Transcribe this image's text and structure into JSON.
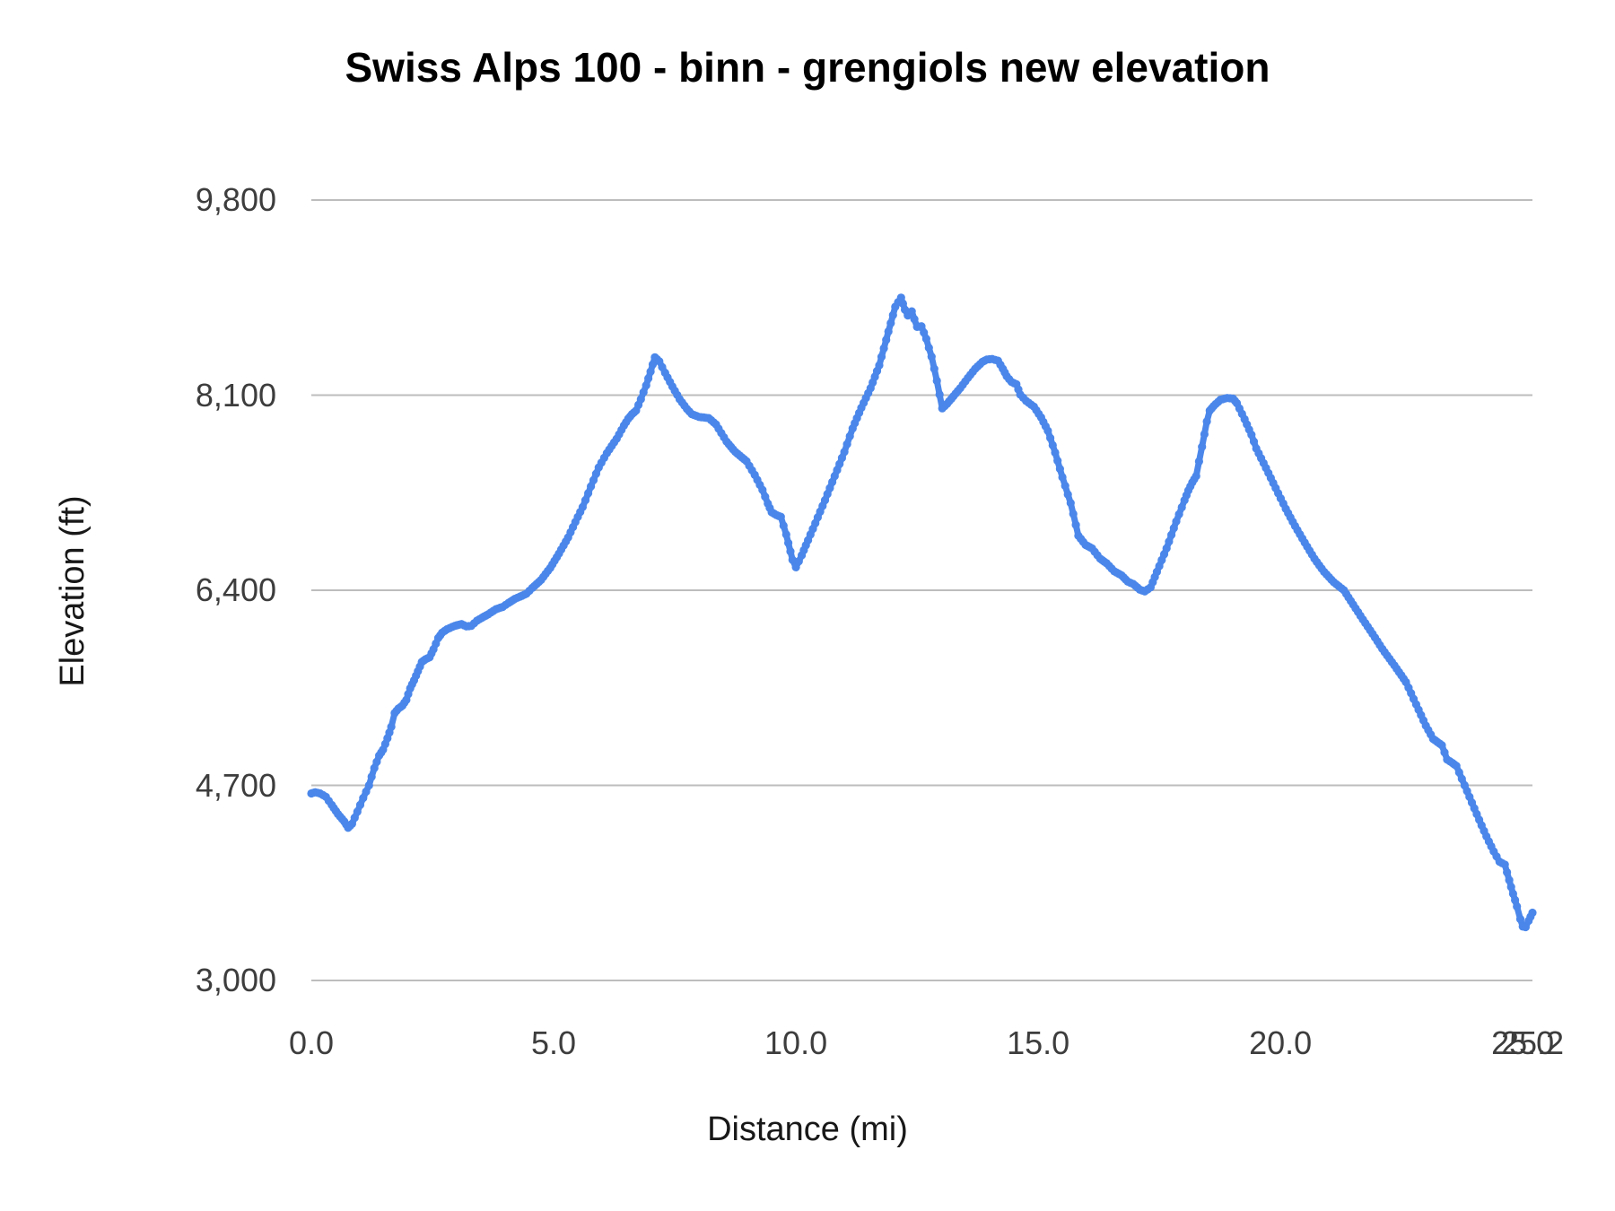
{
  "chart": {
    "title": "Swiss Alps 100 - binn - grengiols new elevation",
    "x_axis_title": "Distance (mi)",
    "y_axis_title": "Elevation (ft)"
  },
  "colors": {
    "background": "#ffffff",
    "series_line": "#4b87ea",
    "gridline": "#bdbdbd",
    "tick_label": "#3d3d3d",
    "axis_title": "#181818",
    "chart_title": "#000000"
  },
  "chart_data": {
    "type": "line",
    "title": "Swiss Alps 100 - binn - grengiols new elevation",
    "xlabel": "Distance (mi)",
    "ylabel": "Elevation (ft)",
    "xlim": [
      0,
      25.2
    ],
    "ylim": [
      3000,
      9800
    ],
    "grid": "horizontal-only",
    "legend": "none",
    "x_ticks": [
      {
        "value": 0,
        "label": "0.0"
      },
      {
        "value": 5,
        "label": "5.0"
      },
      {
        "value": 10,
        "label": "10.0"
      },
      {
        "value": 15,
        "label": "15.0"
      },
      {
        "value": 20,
        "label": "20.0"
      },
      {
        "value": 25,
        "label": "25.0"
      },
      {
        "value": 25.2,
        "label": "25.2"
      }
    ],
    "y_ticks": [
      {
        "value": 3000,
        "label": "3,000"
      },
      {
        "value": 4700,
        "label": "4,700"
      },
      {
        "value": 6400,
        "label": "6,400"
      },
      {
        "value": 8100,
        "label": "8,100"
      },
      {
        "value": 9800,
        "label": "9,800"
      }
    ],
    "series": [
      {
        "name": "elevation",
        "color": "#4b87ea",
        "style": "dotted-thick-line",
        "points": [
          [
            0.0,
            4630
          ],
          [
            0.08,
            4640
          ],
          [
            0.18,
            4630
          ],
          [
            0.3,
            4600
          ],
          [
            0.42,
            4530
          ],
          [
            0.55,
            4450
          ],
          [
            0.68,
            4385
          ],
          [
            0.76,
            4330
          ],
          [
            0.84,
            4365
          ],
          [
            0.95,
            4470
          ],
          [
            1.07,
            4590
          ],
          [
            1.19,
            4700
          ],
          [
            1.3,
            4850
          ],
          [
            1.4,
            4960
          ],
          [
            1.48,
            5010
          ],
          [
            1.57,
            5110
          ],
          [
            1.65,
            5210
          ],
          [
            1.72,
            5330
          ],
          [
            1.8,
            5370
          ],
          [
            1.88,
            5395
          ],
          [
            1.96,
            5445
          ],
          [
            2.04,
            5545
          ],
          [
            2.12,
            5615
          ],
          [
            2.2,
            5695
          ],
          [
            2.28,
            5775
          ],
          [
            2.36,
            5800
          ],
          [
            2.44,
            5815
          ],
          [
            2.52,
            5885
          ],
          [
            2.62,
            5985
          ],
          [
            2.7,
            6030
          ],
          [
            2.8,
            6060
          ],
          [
            2.96,
            6090
          ],
          [
            3.1,
            6105
          ],
          [
            3.2,
            6085
          ],
          [
            3.3,
            6090
          ],
          [
            3.42,
            6135
          ],
          [
            3.52,
            6160
          ],
          [
            3.65,
            6190
          ],
          [
            3.81,
            6235
          ],
          [
            3.95,
            6255
          ],
          [
            4.07,
            6290
          ],
          [
            4.2,
            6325
          ],
          [
            4.31,
            6345
          ],
          [
            4.44,
            6370
          ],
          [
            4.56,
            6420
          ],
          [
            4.74,
            6490
          ],
          [
            4.93,
            6595
          ],
          [
            5.11,
            6720
          ],
          [
            5.3,
            6860
          ],
          [
            5.45,
            6995
          ],
          [
            5.6,
            7125
          ],
          [
            5.77,
            7305
          ],
          [
            5.93,
            7470
          ],
          [
            6.1,
            7595
          ],
          [
            6.3,
            7720
          ],
          [
            6.45,
            7835
          ],
          [
            6.54,
            7895
          ],
          [
            6.62,
            7935
          ],
          [
            6.7,
            7965
          ],
          [
            6.8,
            8065
          ],
          [
            6.91,
            8185
          ],
          [
            7.0,
            8305
          ],
          [
            7.09,
            8430
          ],
          [
            7.18,
            8395
          ],
          [
            7.3,
            8295
          ],
          [
            7.45,
            8175
          ],
          [
            7.6,
            8065
          ],
          [
            7.75,
            7980
          ],
          [
            7.85,
            7935
          ],
          [
            8.0,
            7910
          ],
          [
            8.2,
            7900
          ],
          [
            8.35,
            7845
          ],
          [
            8.57,
            7695
          ],
          [
            8.75,
            7605
          ],
          [
            8.98,
            7525
          ],
          [
            9.15,
            7405
          ],
          [
            9.31,
            7275
          ],
          [
            9.42,
            7155
          ],
          [
            9.5,
            7080
          ],
          [
            9.6,
            7055
          ],
          [
            9.69,
            7040
          ],
          [
            9.8,
            6885
          ],
          [
            9.93,
            6665
          ],
          [
            10.0,
            6600
          ],
          [
            10.12,
            6705
          ],
          [
            10.25,
            6835
          ],
          [
            10.4,
            6985
          ],
          [
            10.6,
            7185
          ],
          [
            10.8,
            7395
          ],
          [
            11.0,
            7605
          ],
          [
            11.17,
            7810
          ],
          [
            11.35,
            7990
          ],
          [
            11.54,
            8160
          ],
          [
            11.72,
            8360
          ],
          [
            11.91,
            8655
          ],
          [
            12.05,
            8870
          ],
          [
            12.17,
            8950
          ],
          [
            12.25,
            8845
          ],
          [
            12.31,
            8795
          ],
          [
            12.39,
            8830
          ],
          [
            12.5,
            8695
          ],
          [
            12.59,
            8700
          ],
          [
            12.69,
            8590
          ],
          [
            12.8,
            8435
          ],
          [
            12.91,
            8225
          ],
          [
            13.02,
            7985
          ],
          [
            13.12,
            8025
          ],
          [
            13.25,
            8090
          ],
          [
            13.39,
            8160
          ],
          [
            13.55,
            8250
          ],
          [
            13.7,
            8330
          ],
          [
            13.85,
            8390
          ],
          [
            13.94,
            8410
          ],
          [
            14.05,
            8415
          ],
          [
            14.17,
            8400
          ],
          [
            14.27,
            8330
          ],
          [
            14.35,
            8265
          ],
          [
            14.45,
            8215
          ],
          [
            14.55,
            8195
          ],
          [
            14.63,
            8105
          ],
          [
            14.75,
            8050
          ],
          [
            14.91,
            8000
          ],
          [
            15.06,
            7905
          ],
          [
            15.2,
            7790
          ],
          [
            15.35,
            7600
          ],
          [
            15.5,
            7385
          ],
          [
            15.67,
            7160
          ],
          [
            15.83,
            6875
          ],
          [
            15.98,
            6795
          ],
          [
            16.11,
            6765
          ],
          [
            16.28,
            6675
          ],
          [
            16.41,
            6635
          ],
          [
            16.57,
            6565
          ],
          [
            16.72,
            6530
          ],
          [
            16.85,
            6475
          ],
          [
            16.96,
            6455
          ],
          [
            17.1,
            6405
          ],
          [
            17.2,
            6390
          ],
          [
            17.32,
            6425
          ],
          [
            17.45,
            6560
          ],
          [
            17.65,
            6765
          ],
          [
            17.85,
            7000
          ],
          [
            18.02,
            7185
          ],
          [
            18.1,
            7270
          ],
          [
            18.18,
            7340
          ],
          [
            18.26,
            7395
          ],
          [
            18.38,
            7650
          ],
          [
            18.48,
            7870
          ],
          [
            18.54,
            7965
          ],
          [
            18.62,
            8005
          ],
          [
            18.76,
            8060
          ],
          [
            18.9,
            8075
          ],
          [
            19.02,
            8070
          ],
          [
            19.1,
            8030
          ],
          [
            19.26,
            7890
          ],
          [
            19.4,
            7755
          ],
          [
            19.5,
            7635
          ],
          [
            19.7,
            7465
          ],
          [
            19.9,
            7290
          ],
          [
            20.11,
            7110
          ],
          [
            20.3,
            6960
          ],
          [
            20.5,
            6815
          ],
          [
            20.7,
            6675
          ],
          [
            20.9,
            6560
          ],
          [
            21.1,
            6470
          ],
          [
            21.31,
            6400
          ],
          [
            21.5,
            6275
          ],
          [
            21.7,
            6145
          ],
          [
            21.9,
            6020
          ],
          [
            22.1,
            5890
          ],
          [
            22.35,
            5745
          ],
          [
            22.59,
            5600
          ],
          [
            22.8,
            5405
          ],
          [
            23.0,
            5220
          ],
          [
            23.15,
            5105
          ],
          [
            23.33,
            5050
          ],
          [
            23.44,
            4925
          ],
          [
            23.55,
            4895
          ],
          [
            23.63,
            4870
          ],
          [
            23.8,
            4700
          ],
          [
            23.95,
            4550
          ],
          [
            24.1,
            4400
          ],
          [
            24.25,
            4255
          ],
          [
            24.4,
            4125
          ],
          [
            24.52,
            4035
          ],
          [
            24.63,
            4010
          ],
          [
            24.72,
            3875
          ],
          [
            24.8,
            3755
          ],
          [
            24.88,
            3645
          ],
          [
            24.95,
            3535
          ],
          [
            25.0,
            3470
          ],
          [
            25.06,
            3465
          ],
          [
            25.12,
            3520
          ],
          [
            25.2,
            3590
          ]
        ]
      }
    ]
  }
}
